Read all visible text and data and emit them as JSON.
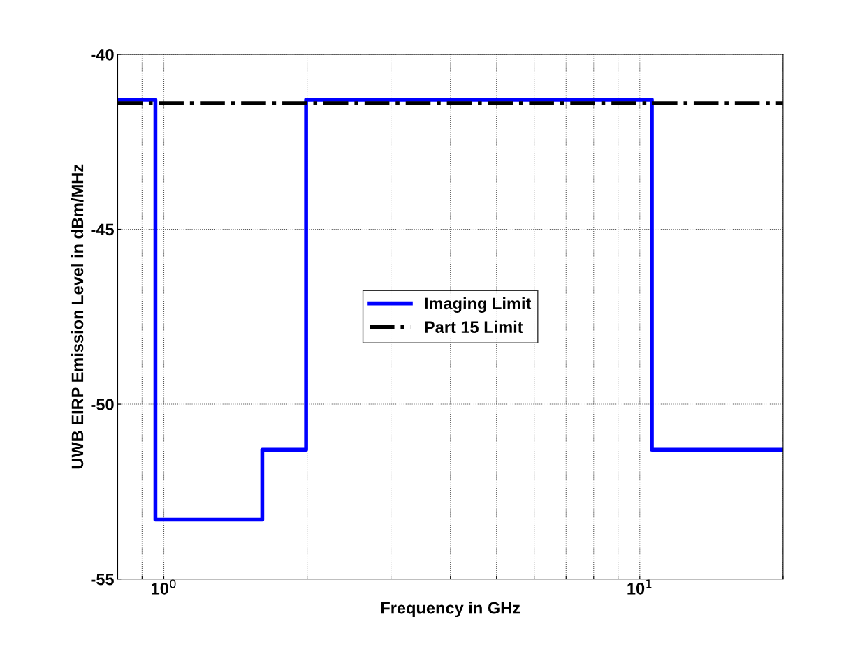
{
  "chart_data": {
    "type": "step",
    "xlabel": "Frequency in GHz",
    "ylabel": "UWB EIRP Emission Level in dBm/MHz",
    "log": "x",
    "xlim": [
      0.8,
      20
    ],
    "ylim": [
      -55,
      -40
    ],
    "xticks": [
      {
        "value": 0.9,
        "label": null
      },
      {
        "value": 1,
        "label": "10$^{0}$"
      },
      {
        "value": 2,
        "label": null
      },
      {
        "value": 3,
        "label": null
      },
      {
        "value": 4,
        "label": null
      },
      {
        "value": 5,
        "label": null
      },
      {
        "value": 6,
        "label": null
      },
      {
        "value": 7,
        "label": null
      },
      {
        "value": 8,
        "label": null
      },
      {
        "value": 9,
        "label": null
      },
      {
        "value": 10,
        "label": "10$^{1}$"
      },
      {
        "value": 20,
        "label": null
      }
    ],
    "yticks": [
      -55,
      -50,
      -45,
      -40
    ],
    "grid": true,
    "legend": "center",
    "series": [
      {
        "name": "Imaging Limit",
        "color": "#0000ff",
        "line_style": "solid",
        "x": [
          0.8,
          0.96,
          1.61,
          1.99,
          10.6,
          20
        ],
        "values": [
          -41.3,
          -53.3,
          -51.3,
          -41.3,
          -51.3,
          -51.3
        ]
      },
      {
        "name": "Part 15 Limit",
        "color": "#000000",
        "type": "line",
        "line_style": "dashdot",
        "x": [
          0.8,
          20
        ],
        "values": [
          -41.4,
          -41.4
        ]
      }
    ]
  }
}
